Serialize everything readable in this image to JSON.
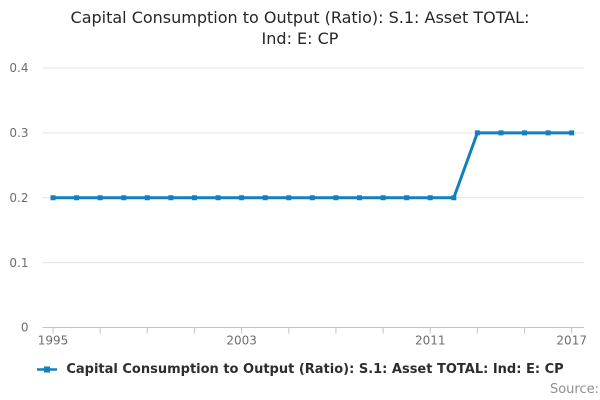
{
  "title": {
    "lines": [
      "Capital Consumption to Output (Ratio): S.1: Asset TOTAL:",
      "Ind: E: CP"
    ]
  },
  "legend": {
    "label": "Capital Consumption to Output (Ratio): S.1: Asset TOTAL: Ind: E: CP"
  },
  "source": {
    "label": "Source:"
  },
  "colors": {
    "series": "#1280be",
    "grid": "#e3e3e3",
    "axis": "#b6c7d8",
    "tick_label": "#6e6e6e",
    "title_text": "#262626",
    "legend_text": "#2d2d2d",
    "source_text": "#8e8e8e",
    "background": "#ffffff"
  },
  "chart_data": {
    "type": "line",
    "title": "Capital Consumption to Output (Ratio): S.1: Asset TOTAL: Ind: E: CP",
    "xlabel": "",
    "ylabel": "",
    "x": [
      1995,
      1996,
      1997,
      1998,
      1999,
      2000,
      2001,
      2002,
      2003,
      2004,
      2005,
      2006,
      2007,
      2008,
      2009,
      2010,
      2011,
      2012,
      2013,
      2014,
      2015,
      2016,
      2017
    ],
    "series": [
      {
        "name": "Capital Consumption to Output (Ratio): S.1: Asset TOTAL: Ind: E: CP",
        "color": "#1280be",
        "values": [
          0.2,
          0.2,
          0.2,
          0.2,
          0.2,
          0.2,
          0.2,
          0.2,
          0.2,
          0.2,
          0.2,
          0.2,
          0.2,
          0.2,
          0.2,
          0.2,
          0.2,
          0.2,
          0.3,
          0.3,
          0.3,
          0.3,
          0.3
        ]
      }
    ],
    "ylim": [
      0,
      0.4
    ],
    "y_ticks": [
      0,
      0.1,
      0.2,
      0.3,
      0.4
    ],
    "y_tick_labels": [
      "0",
      "0.1",
      "0.2",
      "0.3",
      "0.4"
    ],
    "x_ticks": [
      1995,
      1997,
      1999,
      2001,
      2003,
      2005,
      2007,
      2009,
      2011,
      2013,
      2015,
      2017
    ],
    "x_labeled_ticks": [
      1995,
      2003,
      2011,
      2017
    ],
    "grid": "horizontal",
    "legend_position": "bottom",
    "markers": "square"
  }
}
